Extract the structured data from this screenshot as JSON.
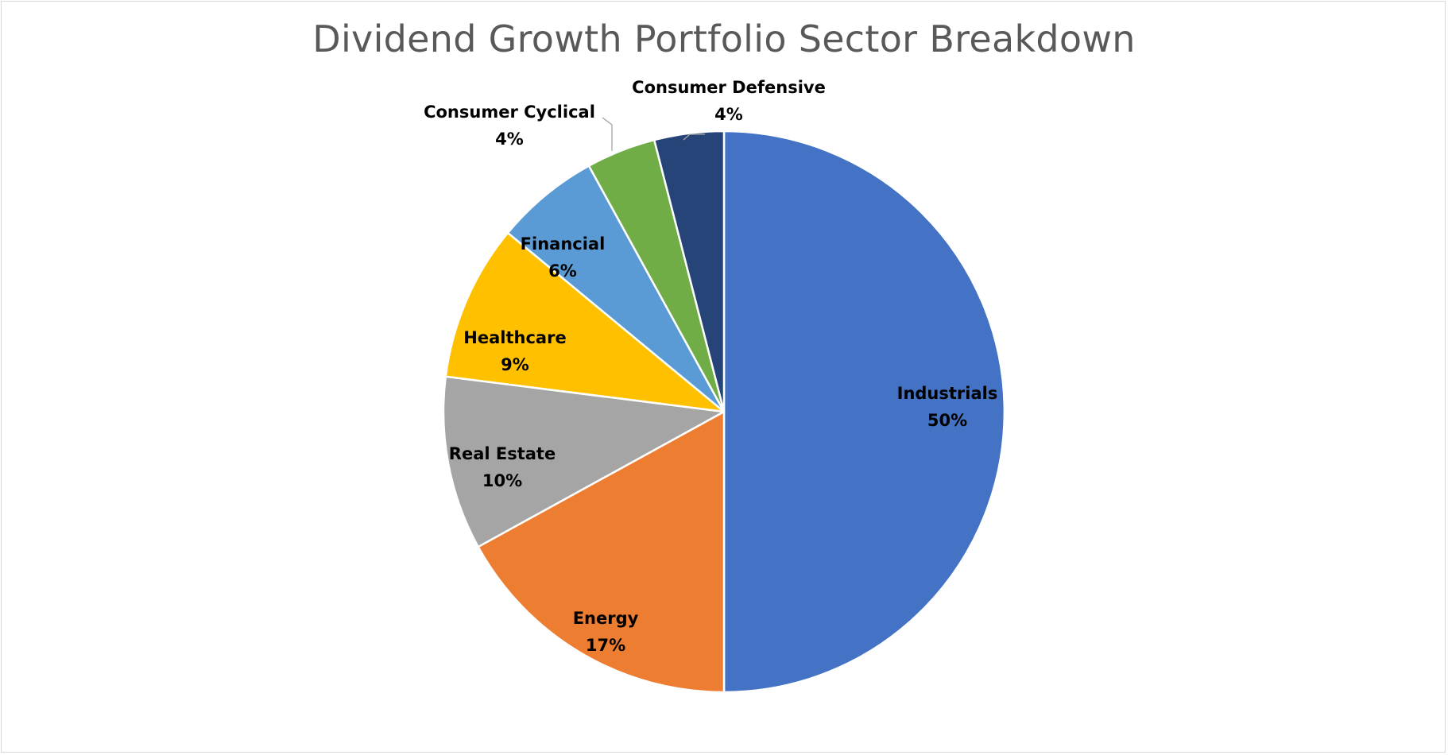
{
  "chart_data": {
    "type": "pie",
    "title": "Dividend Growth Portfolio Sector Breakdown",
    "start_angle_deg": 0,
    "direction": "clockwise",
    "slices": [
      {
        "label": "Industrials",
        "value": 50,
        "value_label": "50%",
        "color": "#4472C4"
      },
      {
        "label": "Energy",
        "value": 17,
        "value_label": "17%",
        "color": "#ED7D31"
      },
      {
        "label": "Real Estate",
        "value": 10,
        "value_label": "10%",
        "color": "#A5A5A5"
      },
      {
        "label": "Healthcare",
        "value": 9,
        "value_label": "9%",
        "color": "#FFC000"
      },
      {
        "label": "Financial",
        "value": 6,
        "value_label": "6%",
        "color": "#5B9BD5"
      },
      {
        "label": "Consumer Cyclical",
        "value": 4,
        "value_label": "4%",
        "color": "#70AD47"
      },
      {
        "label": "Consumer Defensive",
        "value": 4,
        "value_label": "4%",
        "color": "#264478"
      }
    ]
  }
}
